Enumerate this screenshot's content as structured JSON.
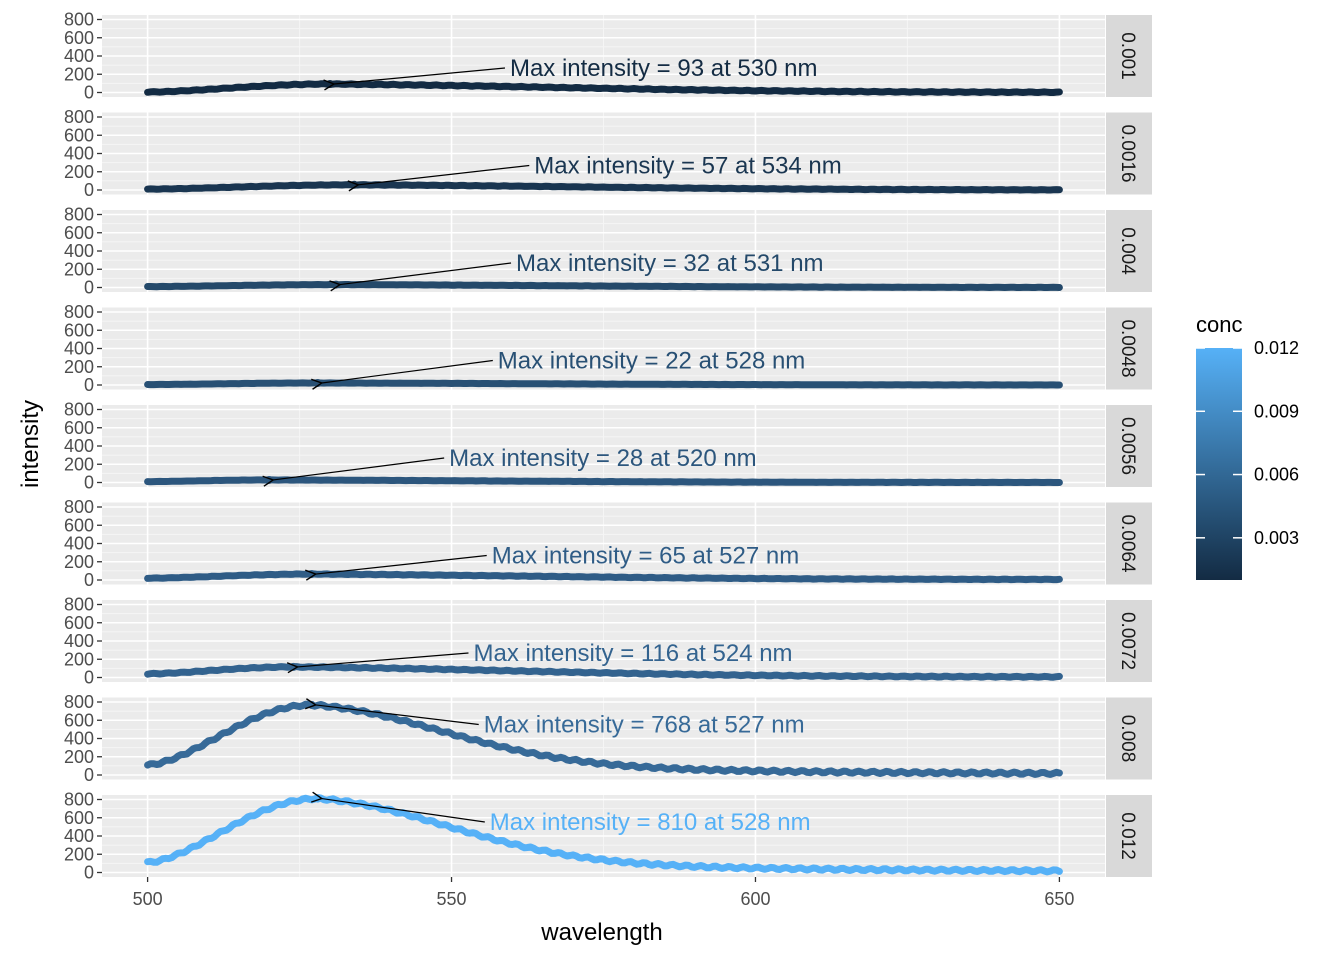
{
  "chart_data": {
    "type": "line",
    "xlabel": "wavelength",
    "ylabel": "intensity",
    "xlim": [
      500,
      650
    ],
    "ylim": [
      0,
      800
    ],
    "x_ticks": [
      500,
      550,
      600,
      650
    ],
    "y_ticks": [
      0,
      200,
      400,
      600,
      800
    ],
    "grid": true,
    "facet_layout": "rows",
    "legend": {
      "title": "conc",
      "placement": "right",
      "type": "colorbar",
      "range": [
        0.001,
        0.012
      ],
      "ticks": [
        0.003,
        0.006,
        0.009,
        0.012
      ],
      "tick_labels": [
        "0.003",
        "0.006",
        "0.009",
        "0.012"
      ],
      "low_color": "#132B43",
      "high_color": "#56B1F7"
    },
    "series": [
      {
        "name": "0.001",
        "conc": 0.001,
        "peak_wavelength": 530,
        "peak_intensity": 93,
        "end_intensity": 0,
        "start_intensity": 5,
        "annotation": "Max intensity = 93 at 530 nm",
        "color": "#132B43"
      },
      {
        "name": "0.0016",
        "conc": 0.0016,
        "peak_wavelength": 534,
        "peak_intensity": 57,
        "end_intensity": 0,
        "start_intensity": 10,
        "annotation": "Max intensity = 57 at 534 nm",
        "color": "#1A3651"
      },
      {
        "name": "0.004",
        "conc": 0.004,
        "peak_wavelength": 531,
        "peak_intensity": 32,
        "end_intensity": 0,
        "start_intensity": 10,
        "annotation": "Max intensity = 32 at 531 nm",
        "color": "#24496A"
      },
      {
        "name": "0.0048",
        "conc": 0.0048,
        "peak_wavelength": 528,
        "peak_intensity": 22,
        "end_intensity": 0,
        "start_intensity": 5,
        "annotation": "Max intensity = 22 at 528 nm",
        "color": "#285074"
      },
      {
        "name": "0.0056",
        "conc": 0.0056,
        "peak_wavelength": 520,
        "peak_intensity": 28,
        "end_intensity": 0,
        "start_intensity": 10,
        "annotation": "Max intensity = 28 at 520 nm",
        "color": "#2C567D"
      },
      {
        "name": "0.0064",
        "conc": 0.0064,
        "peak_wavelength": 527,
        "peak_intensity": 65,
        "end_intensity": 5,
        "start_intensity": 20,
        "annotation": "Max intensity = 65 at 527 nm",
        "color": "#2F5C86"
      },
      {
        "name": "0.0072",
        "conc": 0.0072,
        "peak_wavelength": 524,
        "peak_intensity": 116,
        "end_intensity": 5,
        "start_intensity": 40,
        "annotation": "Max intensity = 116 at 524 nm",
        "color": "#33638F"
      },
      {
        "name": "0.008",
        "conc": 0.008,
        "peak_wavelength": 527,
        "peak_intensity": 768,
        "end_intensity": 5,
        "start_intensity": 110,
        "annotation": "Max intensity = 768 at 527 nm",
        "color": "#376A98"
      },
      {
        "name": "0.012",
        "conc": 0.012,
        "peak_wavelength": 528,
        "peak_intensity": 810,
        "end_intensity": 5,
        "start_intensity": 110,
        "annotation": "Max intensity = 810 at 528 nm",
        "color": "#56B1F7"
      }
    ]
  }
}
